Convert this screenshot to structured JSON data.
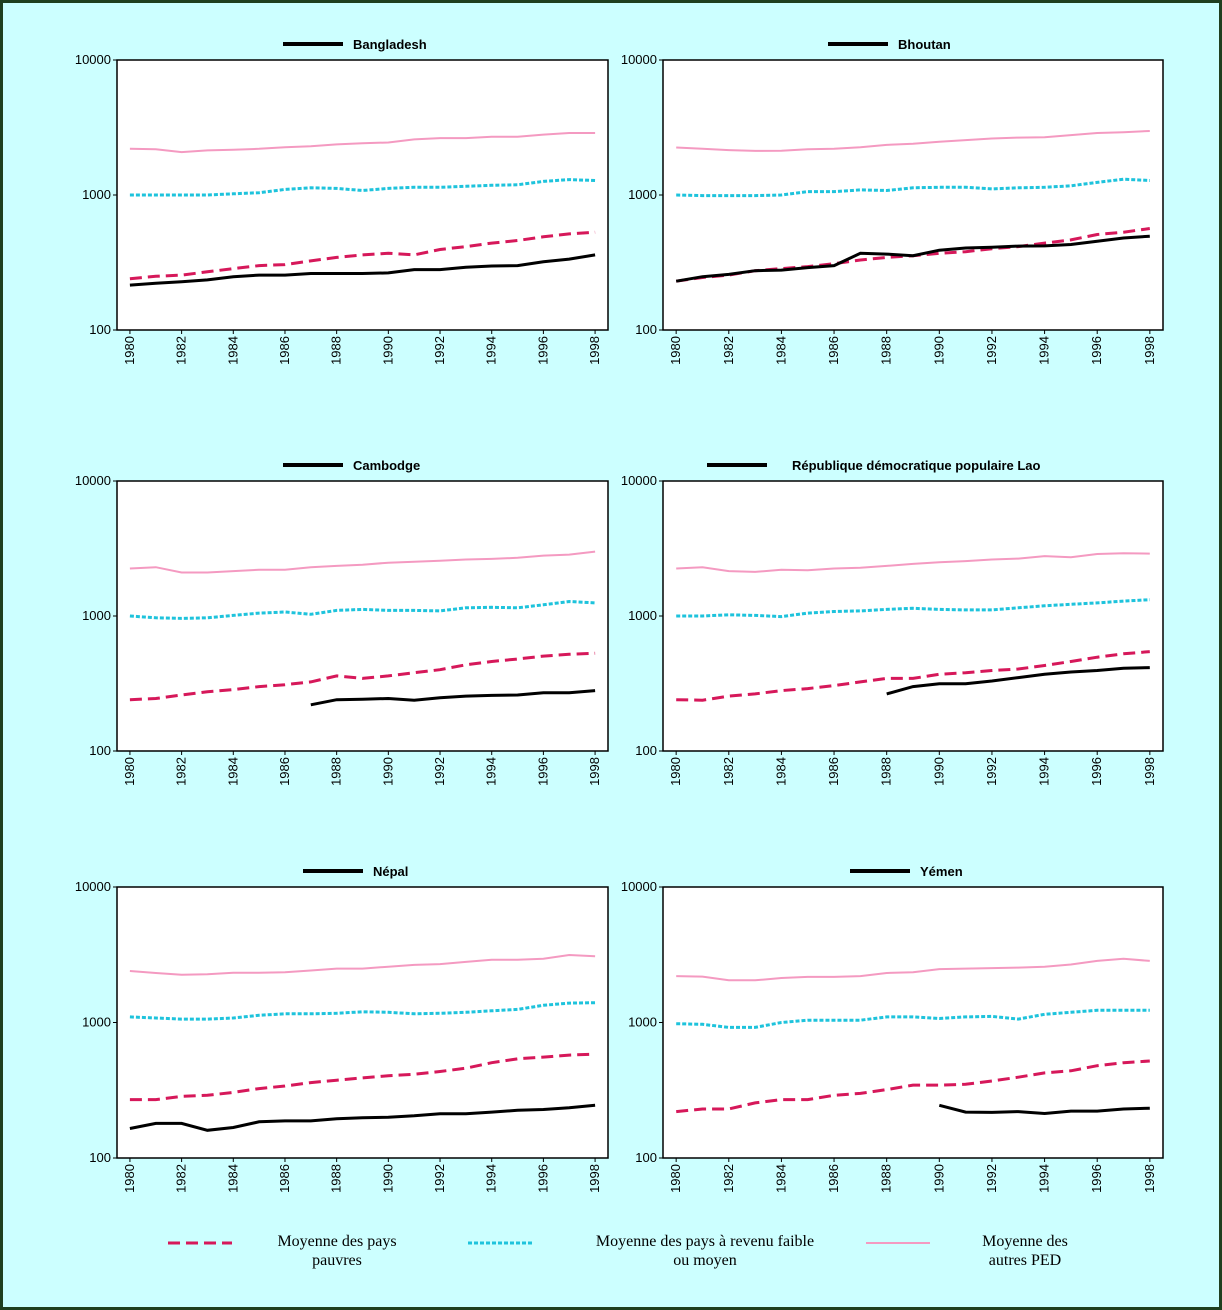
{
  "chart_data": [
    {
      "type": "line",
      "x": [
        1980,
        1981,
        1982,
        1983,
        1984,
        1985,
        1986,
        1987,
        1988,
        1989,
        1990,
        1991,
        1992,
        1993,
        1994,
        1995,
        1996,
        1997,
        1998
      ],
      "xlim": [
        1979.5,
        1998.5
      ],
      "xticks": [
        1980,
        1982,
        1984,
        1986,
        1988,
        1990,
        1992,
        1994,
        1996,
        1998
      ],
      "ylim": [
        100,
        10000
      ],
      "yticks": [
        100,
        1000,
        10000
      ],
      "log_y": true,
      "grid": false,
      "series": [
        {
          "name": "Bangladesh",
          "color": "#000000",
          "dash": "solid",
          "values": [
            215,
            222,
            228,
            235,
            248,
            255,
            255,
            262,
            262,
            262,
            265,
            280,
            280,
            292,
            298,
            300,
            320,
            335,
            360
          ]
        },
        {
          "name": "Moyenne des pays pauvres",
          "color": "#d6185a",
          "dash": "dashed",
          "values": [
            240,
            250,
            255,
            270,
            285,
            300,
            305,
            325,
            345,
            360,
            370,
            360,
            395,
            415,
            440,
            460,
            490,
            515,
            530
          ]
        },
        {
          "name": "Moyenne des pays à revenu faible ou moyen",
          "color": "#1ec3dc",
          "dash": "dotted",
          "values": [
            1000,
            1000,
            1000,
            1000,
            1020,
            1040,
            1100,
            1130,
            1120,
            1080,
            1120,
            1140,
            1140,
            1160,
            1180,
            1190,
            1260,
            1300,
            1280
          ]
        },
        {
          "name": "Moyenne des autres PED",
          "color": "#f49ac1",
          "dash": "solid",
          "values": [
            2200,
            2180,
            2080,
            2140,
            2160,
            2200,
            2260,
            2300,
            2370,
            2420,
            2450,
            2580,
            2640,
            2640,
            2700,
            2700,
            2800,
            2880,
            2880
          ]
        }
      ]
    },
    {
      "type": "line",
      "x": [
        1980,
        1981,
        1982,
        1983,
        1984,
        1985,
        1986,
        1987,
        1988,
        1989,
        1990,
        1991,
        1992,
        1993,
        1994,
        1995,
        1996,
        1997,
        1998
      ],
      "xlim": [
        1979.5,
        1998.5
      ],
      "xticks": [
        1980,
        1982,
        1984,
        1986,
        1988,
        1990,
        1992,
        1994,
        1996,
        1998
      ],
      "ylim": [
        100,
        10000
      ],
      "yticks": [
        100,
        1000,
        10000
      ],
      "log_y": true,
      "grid": false,
      "series": [
        {
          "name": "Bhoutan",
          "color": "#000000",
          "dash": "solid",
          "values": [
            230,
            248,
            258,
            275,
            278,
            290,
            300,
            370,
            365,
            355,
            390,
            405,
            410,
            418,
            420,
            430,
            455,
            480,
            495
          ]
        },
        {
          "name": "Moyenne des pays pauvres",
          "color": "#d6185a",
          "dash": "dashed",
          "values": [
            230,
            245,
            255,
            275,
            285,
            295,
            310,
            330,
            345,
            355,
            370,
            380,
            400,
            415,
            440,
            465,
            510,
            530,
            565
          ]
        },
        {
          "name": "Moyenne des pays à revenu faible ou moyen",
          "color": "#1ec3dc",
          "dash": "dotted",
          "values": [
            1000,
            990,
            990,
            990,
            1000,
            1060,
            1060,
            1090,
            1080,
            1130,
            1140,
            1140,
            1110,
            1130,
            1140,
            1170,
            1240,
            1310,
            1280
          ]
        },
        {
          "name": "Moyenne des autres PED",
          "color": "#f49ac1",
          "dash": "solid",
          "values": [
            2250,
            2200,
            2150,
            2120,
            2130,
            2180,
            2200,
            2260,
            2350,
            2400,
            2480,
            2550,
            2620,
            2660,
            2680,
            2780,
            2880,
            2920,
            2980
          ]
        }
      ]
    },
    {
      "type": "line",
      "x": [
        1980,
        1981,
        1982,
        1983,
        1984,
        1985,
        1986,
        1987,
        1988,
        1989,
        1990,
        1991,
        1992,
        1993,
        1994,
        1995,
        1996,
        1997,
        1998
      ],
      "xlim": [
        1979.5,
        1998.5
      ],
      "xticks": [
        1980,
        1982,
        1984,
        1986,
        1988,
        1990,
        1992,
        1994,
        1996,
        1998
      ],
      "ylim": [
        100,
        10000
      ],
      "yticks": [
        100,
        1000,
        10000
      ],
      "log_y": true,
      "grid": false,
      "series": [
        {
          "name": "Cambodge",
          "color": "#000000",
          "dash": "solid",
          "values": [
            null,
            null,
            null,
            null,
            null,
            null,
            null,
            220,
            240,
            242,
            245,
            238,
            248,
            255,
            258,
            260,
            270,
            270,
            280
          ]
        },
        {
          "name": "Moyenne des pays pauvres",
          "color": "#d6185a",
          "dash": "dashed",
          "values": [
            240,
            245,
            260,
            275,
            285,
            300,
            310,
            325,
            360,
            345,
            360,
            380,
            400,
            435,
            460,
            480,
            505,
            520,
            530
          ]
        },
        {
          "name": "Moyenne des pays à revenu faible ou moyen",
          "color": "#1ec3dc",
          "dash": "dotted",
          "values": [
            1000,
            970,
            960,
            970,
            1010,
            1050,
            1070,
            1030,
            1100,
            1120,
            1100,
            1100,
            1090,
            1150,
            1160,
            1150,
            1210,
            1280,
            1250
          ]
        },
        {
          "name": "Moyenne des autres PED",
          "color": "#f49ac1",
          "dash": "solid",
          "values": [
            2250,
            2300,
            2100,
            2100,
            2150,
            2200,
            2200,
            2300,
            2350,
            2400,
            2480,
            2520,
            2570,
            2620,
            2650,
            2700,
            2800,
            2850,
            3000
          ]
        }
      ]
    },
    {
      "type": "line",
      "x": [
        1980,
        1981,
        1982,
        1983,
        1984,
        1985,
        1986,
        1987,
        1988,
        1989,
        1990,
        1991,
        1992,
        1993,
        1994,
        1995,
        1996,
        1997,
        1998
      ],
      "xlim": [
        1979.5,
        1998.5
      ],
      "xticks": [
        1980,
        1982,
        1984,
        1986,
        1988,
        1990,
        1992,
        1994,
        1996,
        1998
      ],
      "ylim": [
        100,
        10000
      ],
      "yticks": [
        100,
        1000,
        10000
      ],
      "log_y": true,
      "grid": false,
      "series": [
        {
          "name": "République démocratique populaire Lao",
          "color": "#000000",
          "dash": "solid",
          "values": [
            null,
            null,
            null,
            null,
            null,
            null,
            null,
            null,
            265,
            300,
            315,
            315,
            330,
            350,
            370,
            385,
            395,
            410,
            415
          ]
        },
        {
          "name": "Moyenne des pays pauvres",
          "color": "#d6185a",
          "dash": "dashed",
          "values": [
            240,
            238,
            255,
            265,
            280,
            290,
            305,
            325,
            345,
            345,
            370,
            380,
            395,
            405,
            430,
            460,
            495,
            525,
            545
          ]
        },
        {
          "name": "Moyenne des pays à revenu faible ou moyen",
          "color": "#1ec3dc",
          "dash": "dotted",
          "values": [
            1000,
            1000,
            1020,
            1010,
            990,
            1050,
            1080,
            1090,
            1120,
            1140,
            1120,
            1110,
            1110,
            1150,
            1190,
            1220,
            1250,
            1290,
            1320
          ]
        },
        {
          "name": "Moyenne des autres PED",
          "color": "#f49ac1",
          "dash": "solid",
          "values": [
            2250,
            2300,
            2150,
            2120,
            2200,
            2180,
            2250,
            2280,
            2350,
            2430,
            2500,
            2550,
            2620,
            2660,
            2780,
            2720,
            2880,
            2920,
            2900
          ]
        }
      ]
    },
    {
      "type": "line",
      "x": [
        1980,
        1981,
        1982,
        1983,
        1984,
        1985,
        1986,
        1987,
        1988,
        1989,
        1990,
        1991,
        1992,
        1993,
        1994,
        1995,
        1996,
        1997,
        1998
      ],
      "xlim": [
        1979.5,
        1998.5
      ],
      "xticks": [
        1980,
        1982,
        1984,
        1986,
        1988,
        1990,
        1992,
        1994,
        1996,
        1998
      ],
      "ylim": [
        100,
        10000
      ],
      "yticks": [
        100,
        1000,
        10000
      ],
      "log_y": true,
      "grid": false,
      "series": [
        {
          "name": "Népal",
          "color": "#000000",
          "dash": "solid",
          "values": [
            165,
            180,
            180,
            160,
            168,
            185,
            188,
            188,
            195,
            198,
            200,
            205,
            212,
            212,
            218,
            225,
            228,
            235,
            245
          ]
        },
        {
          "name": "Moyenne des pays pauvres",
          "color": "#d6185a",
          "dash": "dashed",
          "values": [
            270,
            270,
            285,
            290,
            305,
            325,
            340,
            360,
            375,
            390,
            405,
            415,
            435,
            460,
            505,
            540,
            555,
            575,
            585
          ]
        },
        {
          "name": "Moyenne des pays à revenu faible ou moyen",
          "color": "#1ec3dc",
          "dash": "dotted",
          "values": [
            1100,
            1080,
            1060,
            1060,
            1080,
            1130,
            1160,
            1160,
            1170,
            1200,
            1190,
            1160,
            1170,
            1190,
            1220,
            1250,
            1340,
            1390,
            1400
          ]
        },
        {
          "name": "Moyenne des autres PED",
          "color": "#f49ac1",
          "dash": "solid",
          "values": [
            2400,
            2320,
            2250,
            2270,
            2330,
            2330,
            2350,
            2420,
            2500,
            2500,
            2580,
            2660,
            2700,
            2800,
            2900,
            2900,
            2950,
            3150,
            3080
          ]
        }
      ]
    },
    {
      "type": "line",
      "x": [
        1980,
        1981,
        1982,
        1983,
        1984,
        1985,
        1986,
        1987,
        1988,
        1989,
        1990,
        1991,
        1992,
        1993,
        1994,
        1995,
        1996,
        1997,
        1998
      ],
      "xlim": [
        1979.5,
        1998.5
      ],
      "xticks": [
        1980,
        1982,
        1984,
        1986,
        1988,
        1990,
        1992,
        1994,
        1996,
        1998
      ],
      "ylim": [
        100,
        10000
      ],
      "yticks": [
        100,
        1000,
        10000
      ],
      "log_y": true,
      "grid": false,
      "series": [
        {
          "name": "Yémen",
          "color": "#000000",
          "dash": "solid",
          "values": [
            null,
            null,
            null,
            null,
            null,
            null,
            null,
            null,
            null,
            null,
            245,
            218,
            217,
            220,
            213,
            222,
            222,
            230,
            233
          ]
        },
        {
          "name": "Moyenne des pays pauvres",
          "color": "#d6185a",
          "dash": "dashed",
          "values": [
            220,
            230,
            230,
            255,
            270,
            270,
            290,
            300,
            320,
            345,
            345,
            350,
            370,
            395,
            425,
            440,
            480,
            505,
            520
          ]
        },
        {
          "name": "Moyenne des pays à revenu faible ou moyen",
          "color": "#1ec3dc",
          "dash": "dotted",
          "values": [
            980,
            970,
            920,
            920,
            1000,
            1040,
            1040,
            1040,
            1100,
            1100,
            1070,
            1100,
            1110,
            1060,
            1150,
            1190,
            1230,
            1230,
            1230
          ]
        },
        {
          "name": "Moyenne des autres PED",
          "color": "#f49ac1",
          "dash": "solid",
          "values": [
            2200,
            2180,
            2050,
            2050,
            2130,
            2170,
            2170,
            2200,
            2320,
            2350,
            2480,
            2500,
            2520,
            2540,
            2580,
            2680,
            2850,
            2950,
            2850
          ]
        }
      ]
    }
  ]
}
